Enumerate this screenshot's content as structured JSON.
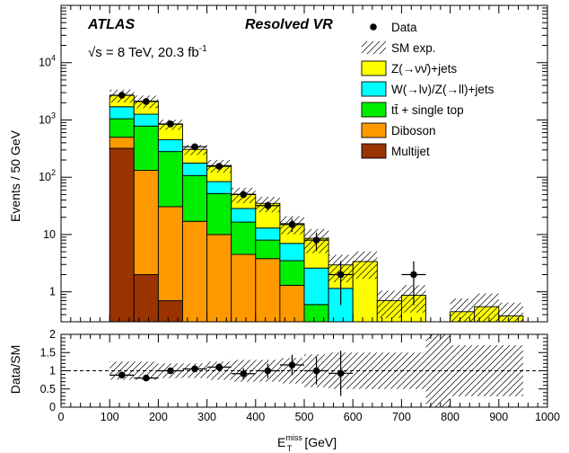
{
  "chart_data": {
    "type": "bar",
    "experiment": "ATLAS",
    "region": "Resolved VR",
    "energy_label": "√s = 8 TeV, 20.3 fb",
    "lumi_exponent": "-1",
    "xlabel": "[GeV]",
    "xlabel_symbol": "E",
    "xlabel_sub": "T",
    "xlabel_sup": "miss",
    "ylabel": "Events / 50 GeV",
    "ratio_ylabel": "Data/SM",
    "xlim": [
      0,
      1000
    ],
    "ylim": [
      0.3,
      100000
    ],
    "ratio_ylim": [
      0,
      2
    ],
    "yscale": "log",
    "bin_edges": [
      100,
      150,
      200,
      250,
      300,
      350,
      400,
      450,
      500,
      550,
      600,
      650,
      700,
      750,
      800,
      850,
      900,
      950
    ],
    "x_ticks": [
      0,
      100,
      200,
      300,
      400,
      500,
      600,
      700,
      800,
      900,
      1000
    ],
    "x_tick_labels": [
      "0",
      "100",
      "200",
      "300",
      "400",
      "500",
      "600",
      "700",
      "800",
      "900",
      "1000"
    ],
    "y_ticks": [
      {
        "value": 1,
        "base": "1",
        "exp": ""
      },
      {
        "value": 10,
        "base": "10",
        "exp": ""
      },
      {
        "value": 100,
        "base": "10",
        "exp": "2"
      },
      {
        "value": 1000,
        "base": "10",
        "exp": "3"
      },
      {
        "value": 10000,
        "base": "10",
        "exp": "4"
      }
    ],
    "ratio_y_ticks": [
      "0",
      "0.5",
      "1",
      "1.5",
      "2"
    ],
    "legend_position": "top-right",
    "stack": [
      {
        "name": "Multijet",
        "color": "#993300",
        "values": [
          320,
          2,
          0.7,
          0,
          0,
          0,
          0,
          0,
          0,
          0,
          0,
          0,
          0,
          0,
          0,
          0,
          0
        ]
      },
      {
        "name": "Diboson",
        "color": "#ff9900",
        "values": [
          180,
          130,
          30,
          17,
          10,
          4.5,
          3.8,
          1.3,
          0,
          0,
          0,
          0,
          0,
          0,
          0,
          0,
          0
        ]
      },
      {
        "name": "tt̄ + single top",
        "color": "#00ee00",
        "values": [
          550,
          650,
          250,
          90,
          42,
          12,
          4.2,
          2.2,
          0.6,
          0.05,
          0.06,
          0.02,
          0.02,
          0,
          0,
          0,
          0
        ]
      },
      {
        "name": "W(→lν)/Z(→ll)+jets",
        "color": "#00ffff",
        "values": [
          650,
          480,
          170,
          70,
          32,
          12,
          5,
          3.5,
          2,
          1.1,
          0.12,
          0.05,
          0.05,
          0,
          0,
          0,
          0
        ]
      },
      {
        "name": "Z(→νν̄)+jets",
        "color": "#ffff00",
        "values": [
          1000,
          870,
          390,
          130,
          76,
          22,
          22,
          8.5,
          6,
          1.8,
          3.2,
          0.63,
          0.8,
          0,
          0.45,
          0.55,
          0.38
        ]
      }
    ],
    "sm_uncertainty": {
      "name": "SM exp.",
      "relative": [
        0.25,
        0.25,
        0.2,
        0.2,
        0.25,
        0.3,
        0.3,
        0.35,
        0.45,
        0.5,
        0.5,
        0.5,
        0.5,
        1.2,
        0.7,
        0.7,
        0.7
      ]
    },
    "data": {
      "name": "Data",
      "x": [
        125,
        175,
        225,
        275,
        325,
        375,
        425,
        475,
        525,
        575,
        725
      ],
      "y": [
        2700,
        2100,
        850,
        340,
        155,
        50,
        32,
        15,
        8,
        2,
        2
      ],
      "ratio": [
        0.88,
        0.8,
        1.0,
        1.05,
        1.1,
        0.92,
        1.0,
        1.16,
        1.0,
        0.93,
        null
      ],
      "ratio_err": [
        0.06,
        0.05,
        0.06,
        0.07,
        0.1,
        0.15,
        0.2,
        0.28,
        0.38,
        0.62,
        null
      ]
    }
  }
}
